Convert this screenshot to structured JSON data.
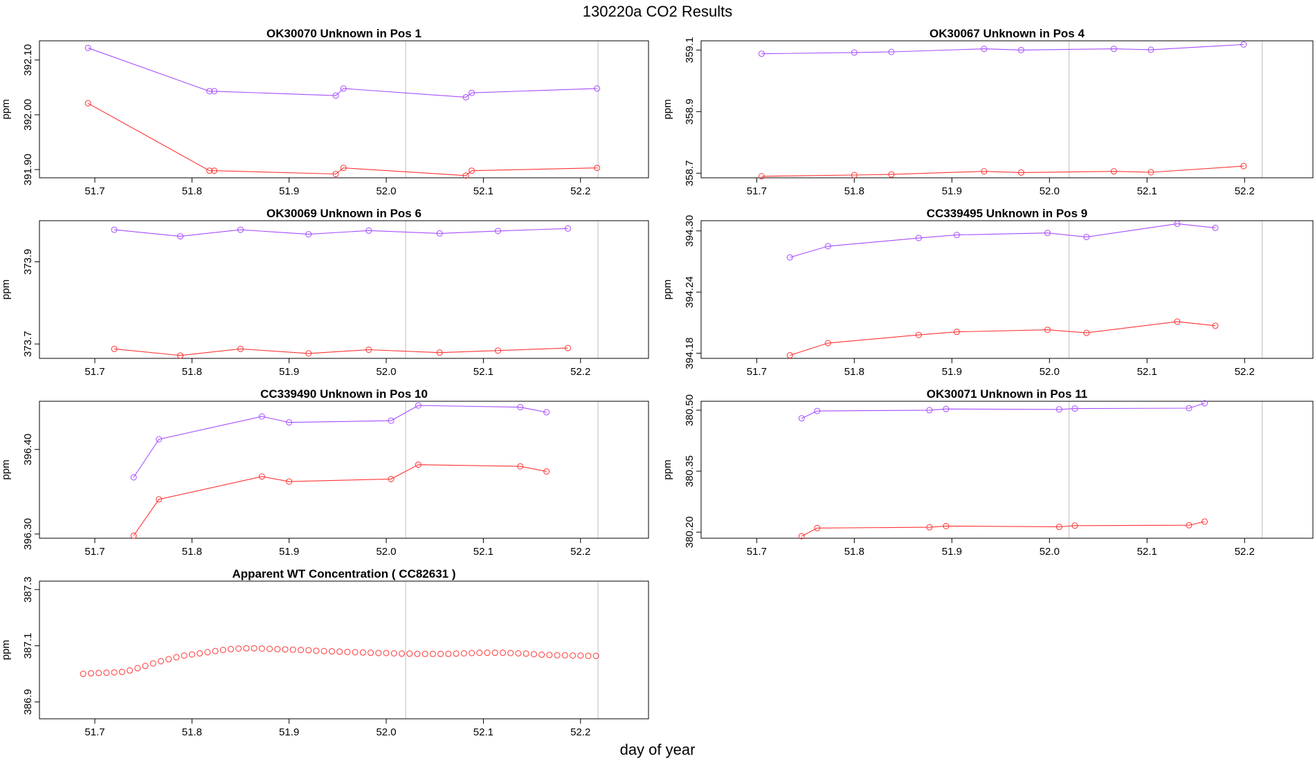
{
  "figure": {
    "title": "130220a  CO2 Results",
    "xlabel": "day of year",
    "colors": {
      "upper": "#a64dff",
      "lower": "#ff3333",
      "vline": "#c8c8c8",
      "axis": "#000000"
    },
    "xticks": [
      "51.7",
      "51.8",
      "51.9",
      "52.0",
      "52.1",
      "52.2"
    ],
    "vlines": [
      52.02,
      52.218
    ]
  },
  "chart_data": [
    {
      "type": "line",
      "title": "OK30070    Unknown in Pos 1",
      "ylabel": "ppm",
      "xlim": [
        51.643,
        52.27
      ],
      "ylim": [
        391.885,
        392.135
      ],
      "yticks": [
        "391.90",
        "392.00",
        "392.10"
      ],
      "yticks_values": [
        391.9,
        392.0,
        392.1
      ],
      "series": [
        {
          "color": "upper",
          "x": [
            51.693,
            51.818,
            51.823,
            51.948,
            51.956,
            52.082,
            52.088,
            52.217
          ],
          "y": [
            392.122,
            392.043,
            392.043,
            392.035,
            392.048,
            392.032,
            392.04,
            392.048
          ]
        },
        {
          "color": "lower",
          "x": [
            51.693,
            51.818,
            51.823,
            51.948,
            51.956,
            52.082,
            52.088,
            52.217
          ],
          "y": [
            392.021,
            391.898,
            391.898,
            391.892,
            391.903,
            391.889,
            391.898,
            391.903
          ]
        }
      ]
    },
    {
      "type": "line",
      "title": "OK30067    Unknown in Pos 4",
      "ylabel": "ppm",
      "xlim": [
        51.643,
        52.27
      ],
      "ylim": [
        358.685,
        359.13
      ],
      "yticks": [
        "358.7",
        "358.9",
        "359.1"
      ],
      "yticks_values": [
        358.7,
        358.9,
        359.1
      ],
      "series": [
        {
          "color": "upper",
          "x": [
            51.705,
            51.8,
            51.838,
            51.933,
            51.971,
            52.066,
            52.104,
            52.199
          ],
          "y": [
            359.088,
            359.092,
            359.094,
            359.104,
            359.1,
            359.104,
            359.101,
            359.118
          ]
        },
        {
          "color": "lower",
          "x": [
            51.705,
            51.8,
            51.838,
            51.933,
            51.971,
            52.066,
            52.104,
            52.199
          ],
          "y": [
            358.69,
            358.694,
            358.696,
            358.706,
            358.702,
            358.706,
            358.703,
            358.723
          ]
        }
      ]
    },
    {
      "type": "line",
      "title": "OK30069    Unknown in Pos 6",
      "ylabel": "ppm",
      "xlim": [
        51.643,
        52.27
      ],
      "ylim": [
        373.665,
        374.0
      ],
      "yticks": [
        "373.7",
        "373.9"
      ],
      "yticks_values": [
        373.7,
        373.9
      ],
      "series": [
        {
          "color": "upper",
          "x": [
            51.72,
            51.788,
            51.85,
            51.92,
            51.982,
            52.055,
            52.115,
            52.187
          ],
          "y": [
            373.978,
            373.962,
            373.978,
            373.967,
            373.976,
            373.969,
            373.975,
            373.981
          ]
        },
        {
          "color": "lower",
          "x": [
            51.72,
            51.788,
            51.85,
            51.92,
            51.982,
            52.055,
            52.115,
            52.187
          ],
          "y": [
            373.688,
            373.672,
            373.688,
            373.677,
            373.686,
            373.679,
            373.684,
            373.69
          ]
        }
      ]
    },
    {
      "type": "line",
      "title": "CC339495    Unknown in Pos 9",
      "ylabel": "ppm",
      "xlim": [
        51.643,
        52.27
      ],
      "ylim": [
        394.175,
        394.31
      ],
      "yticks": [
        "394.18",
        "394.24",
        "394.30"
      ],
      "yticks_values": [
        394.18,
        394.24,
        394.3
      ],
      "series": [
        {
          "color": "upper",
          "x": [
            51.734,
            51.773,
            51.866,
            51.905,
            51.998,
            52.038,
            52.131,
            52.17
          ],
          "y": [
            394.274,
            394.285,
            394.293,
            394.296,
            394.298,
            394.294,
            394.307,
            394.303
          ]
        },
        {
          "color": "lower",
          "x": [
            51.734,
            51.773,
            51.866,
            51.905,
            51.998,
            52.038,
            52.131,
            52.17
          ],
          "y": [
            394.178,
            394.19,
            394.198,
            394.201,
            394.203,
            394.2,
            394.211,
            394.207
          ]
        }
      ]
    },
    {
      "type": "line",
      "title": "CC339490    Unknown in Pos 10",
      "ylabel": "ppm",
      "xlim": [
        51.643,
        52.27
      ],
      "ylim": [
        396.295,
        396.457
      ],
      "yticks": [
        "396.30",
        "396.40"
      ],
      "yticks_values": [
        396.3,
        396.4
      ],
      "series": [
        {
          "color": "upper",
          "x": [
            51.74,
            51.766,
            51.872,
            51.9,
            52.005,
            52.033,
            52.138,
            52.165
          ],
          "y": [
            396.367,
            396.412,
            396.439,
            396.432,
            396.434,
            396.452,
            396.45,
            396.444
          ]
        },
        {
          "color": "lower",
          "x": [
            51.74,
            51.766,
            51.872,
            51.9,
            52.005,
            52.033,
            52.138,
            52.165
          ],
          "y": [
            396.298,
            396.341,
            396.368,
            396.362,
            396.365,
            396.382,
            396.38,
            396.374
          ]
        }
      ]
    },
    {
      "type": "line",
      "title": "OK30071    Unknown in Pos 11",
      "ylabel": "ppm",
      "xlim": [
        51.643,
        52.27
      ],
      "ylim": [
        380.185,
        380.522
      ],
      "yticks": [
        "380.20",
        "380.35",
        "380.50"
      ],
      "yticks_values": [
        380.2,
        380.35,
        380.5
      ],
      "series": [
        {
          "color": "upper",
          "x": [
            51.746,
            51.762,
            51.877,
            51.894,
            52.01,
            52.026,
            52.143,
            52.159
          ],
          "y": [
            380.48,
            380.498,
            380.5,
            380.503,
            380.502,
            380.504,
            380.505,
            380.517
          ]
        },
        {
          "color": "lower",
          "x": [
            51.746,
            51.762,
            51.877,
            51.894,
            52.01,
            52.026,
            52.143,
            52.159
          ],
          "y": [
            380.19,
            380.21,
            380.212,
            380.215,
            380.213,
            380.216,
            380.217,
            380.226
          ]
        }
      ]
    },
    {
      "type": "scatter",
      "title": "Apparent WT Concentration ( CC82631 )",
      "ylabel": "ppm",
      "xlim": [
        51.643,
        52.27
      ],
      "ylim": [
        386.84,
        387.33
      ],
      "yticks": [
        "386.9",
        "387.1",
        "387.3"
      ],
      "yticks_values": [
        386.9,
        387.1,
        387.3
      ],
      "series": [
        {
          "color": "lower",
          "x": [
            51.688,
            51.696,
            51.704,
            51.712,
            51.72,
            51.728,
            51.736,
            51.744,
            51.752,
            51.76,
            51.768,
            51.776,
            51.784,
            51.792,
            51.8,
            51.808,
            51.816,
            51.824,
            51.832,
            51.84,
            51.848,
            51.856,
            51.864,
            51.872,
            51.88,
            51.888,
            51.896,
            51.904,
            51.912,
            51.92,
            51.928,
            51.936,
            51.944,
            51.952,
            51.96,
            51.968,
            51.976,
            51.984,
            51.992,
            52.0,
            52.008,
            52.016,
            52.024,
            52.032,
            52.04,
            52.048,
            52.056,
            52.064,
            52.072,
            52.08,
            52.088,
            52.096,
            52.104,
            52.112,
            52.12,
            52.128,
            52.136,
            52.144,
            52.152,
            52.16,
            52.168,
            52.176,
            52.184,
            52.192,
            52.2,
            52.208,
            52.216
          ],
          "y": [
            387.0,
            387.002,
            387.003,
            387.004,
            387.005,
            387.007,
            387.012,
            387.02,
            387.028,
            387.037,
            387.045,
            387.052,
            387.059,
            387.065,
            387.069,
            387.073,
            387.077,
            387.081,
            387.085,
            387.088,
            387.09,
            387.091,
            387.091,
            387.09,
            387.089,
            387.088,
            387.087,
            387.086,
            387.085,
            387.084,
            387.082,
            387.081,
            387.08,
            387.079,
            387.078,
            387.077,
            387.076,
            387.075,
            387.074,
            387.074,
            387.073,
            387.072,
            387.072,
            387.071,
            387.071,
            387.071,
            387.071,
            387.071,
            387.072,
            387.073,
            387.074,
            387.075,
            387.075,
            387.075,
            387.075,
            387.074,
            387.073,
            387.072,
            387.07,
            387.068,
            387.067,
            387.066,
            387.066,
            387.065,
            387.065,
            387.064,
            387.064
          ]
        }
      ]
    }
  ]
}
